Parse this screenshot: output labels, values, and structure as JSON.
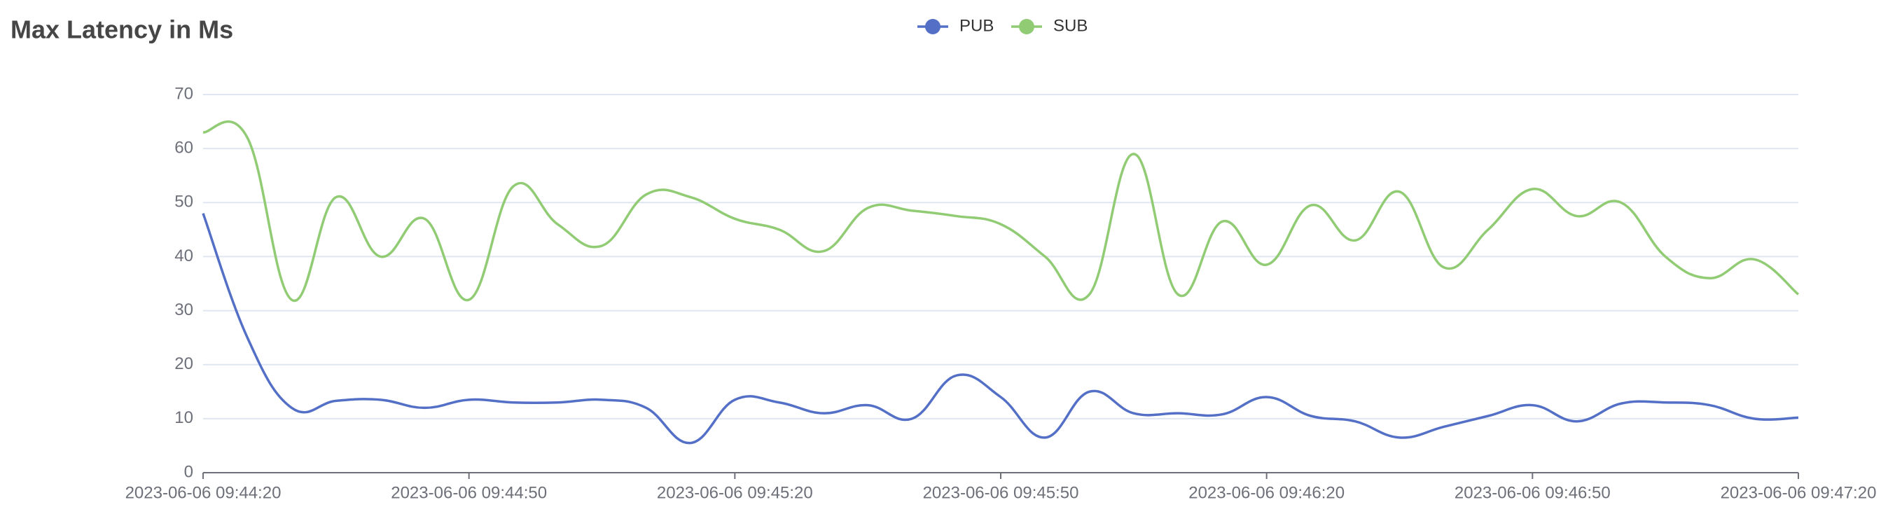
{
  "chart_data": {
    "type": "line",
    "title": "Max Latency in Ms",
    "x": [
      "2023-06-06 09:44:20",
      "2023-06-06 09:44:25",
      "2023-06-06 09:44:30",
      "2023-06-06 09:44:35",
      "2023-06-06 09:44:40",
      "2023-06-06 09:44:45",
      "2023-06-06 09:44:50",
      "2023-06-06 09:44:55",
      "2023-06-06 09:45:00",
      "2023-06-06 09:45:05",
      "2023-06-06 09:45:10",
      "2023-06-06 09:45:15",
      "2023-06-06 09:45:20",
      "2023-06-06 09:45:25",
      "2023-06-06 09:45:30",
      "2023-06-06 09:45:35",
      "2023-06-06 09:45:40",
      "2023-06-06 09:45:45",
      "2023-06-06 09:45:50",
      "2023-06-06 09:45:55",
      "2023-06-06 09:46:00",
      "2023-06-06 09:46:05",
      "2023-06-06 09:46:10",
      "2023-06-06 09:46:15",
      "2023-06-06 09:46:20",
      "2023-06-06 09:46:25",
      "2023-06-06 09:46:30",
      "2023-06-06 09:46:35",
      "2023-06-06 09:46:40",
      "2023-06-06 09:46:45",
      "2023-06-06 09:46:50",
      "2023-06-06 09:46:55",
      "2023-06-06 09:47:00",
      "2023-06-06 09:47:05",
      "2023-06-06 09:47:10",
      "2023-06-06 09:47:15",
      "2023-06-06 09:47:20"
    ],
    "series": [
      {
        "name": "PUB",
        "color": "#5470c6",
        "values": [
          48,
          25,
          12,
          13.3,
          13.5,
          12,
          13.5,
          13,
          13,
          13.5,
          12,
          5.5,
          13.5,
          13,
          11,
          12.5,
          10,
          18,
          14,
          6.5,
          15,
          11,
          11,
          10.8,
          14,
          10.5,
          9.5,
          6.5,
          8.5,
          10.5,
          12.5,
          9.5,
          12.8,
          13,
          12.5,
          10,
          10.2
        ]
      },
      {
        "name": "SUB",
        "color": "#91cc75",
        "values": [
          63,
          62,
          32,
          51,
          40,
          47,
          32,
          53,
          46,
          42,
          51.5,
          51,
          47,
          45,
          41,
          49,
          48.5,
          47.5,
          46,
          40,
          33,
          59,
          33,
          46.5,
          38.5,
          49.5,
          43,
          52,
          38,
          45,
          52.5,
          47.5,
          50,
          40,
          36,
          39.5,
          33
        ]
      }
    ],
    "xlim": [
      "2023-06-06 09:44:20",
      "2023-06-06 09:47:20"
    ],
    "xticks": [
      "2023-06-06 09:44:20",
      "2023-06-06 09:44:50",
      "2023-06-06 09:45:20",
      "2023-06-06 09:45:50",
      "2023-06-06 09:46:20",
      "2023-06-06 09:46:50",
      "2023-06-06 09:47:20"
    ],
    "ylim": [
      0,
      70
    ],
    "yticks": [
      0,
      10,
      20,
      30,
      40,
      50,
      60,
      70
    ],
    "grid": true,
    "smooth": true,
    "legend": "top"
  }
}
